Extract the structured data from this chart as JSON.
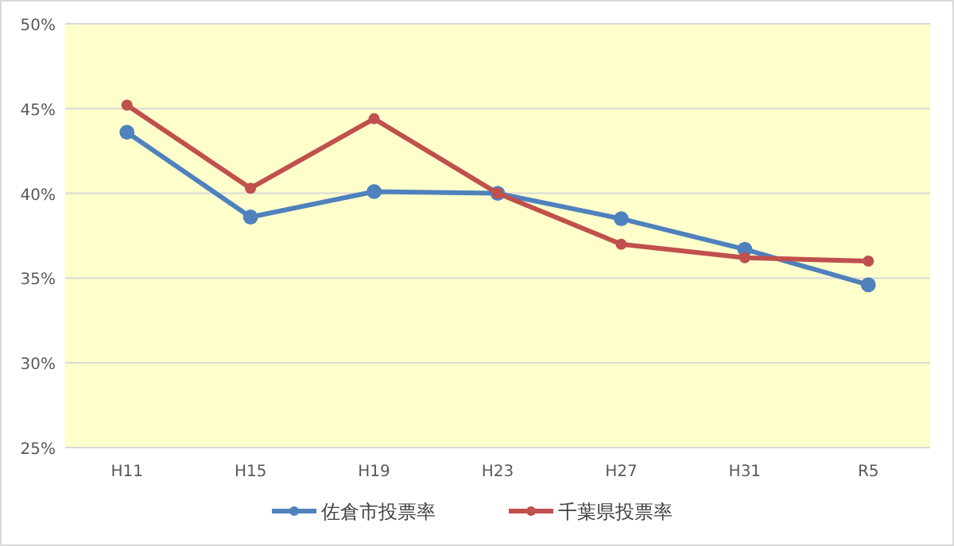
{
  "chart_data": {
    "type": "line",
    "categories": [
      "H11",
      "H15",
      "H19",
      "H23",
      "H27",
      "H31",
      "R5"
    ],
    "series": [
      {
        "name": "佐倉市投票率",
        "color": "#4f81bd",
        "values": [
          43.6,
          38.6,
          40.1,
          40.0,
          38.5,
          36.7,
          34.6
        ]
      },
      {
        "name": "千葉県投票率",
        "color": "#c0504d",
        "values": [
          45.2,
          40.3,
          44.4,
          40.0,
          37.0,
          36.2,
          36.0
        ]
      }
    ],
    "ylim": [
      25,
      50
    ],
    "yticks": [
      {
        "value": 25,
        "label": "25%"
      },
      {
        "value": 30,
        "label": "30%"
      },
      {
        "value": 35,
        "label": "35%"
      },
      {
        "value": 40,
        "label": "40%"
      },
      {
        "value": 45,
        "label": "45%"
      },
      {
        "value": 50,
        "label": "50%"
      }
    ],
    "grid": "y",
    "legend": "bottom",
    "marker": "circle"
  }
}
